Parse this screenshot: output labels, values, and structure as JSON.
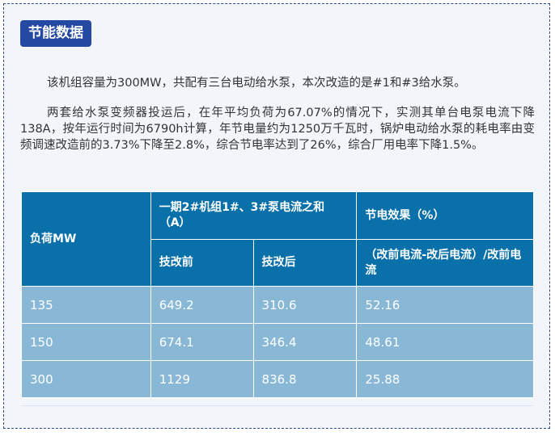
{
  "section_title": "节能数据",
  "paragraphs": [
    "该机组容量为300MW，共配有三台电动给水泵，本次改造的是#1和#3给水泵。",
    "两套给水泵变频器投运后，在年平均负荷为67.07%的情况下，实测其单台电泵电流下降138A，按年运行时间为6790h计算，年节电量约为1250万千瓦时，锅炉电动给水泵的耗电率由变频调速改造前的3.73%下降至2.8%，综合节电率达到了26%，综合厂用电率下降1.5%。"
  ],
  "table": {
    "header_load": "负荷MW",
    "header_current_group": "一期2#机组1#、3#泵电流之和（A）",
    "header_effect": "节电效果（%）",
    "header_before": "技改前",
    "header_after": "技改后",
    "header_formula": "（改前电流-改后电流）/改前电流",
    "rows": [
      [
        "135",
        "649.2",
        "310.6",
        "52.16"
      ],
      [
        "150",
        "674.1",
        "346.4",
        "48.61"
      ],
      [
        "300",
        "1129",
        "836.8",
        "25.88"
      ]
    ]
  },
  "colors": {
    "badge": "#2548a2",
    "table_header": "#0a70aa",
    "table_body": "#88b8d6",
    "background": "#f2f6fb"
  }
}
